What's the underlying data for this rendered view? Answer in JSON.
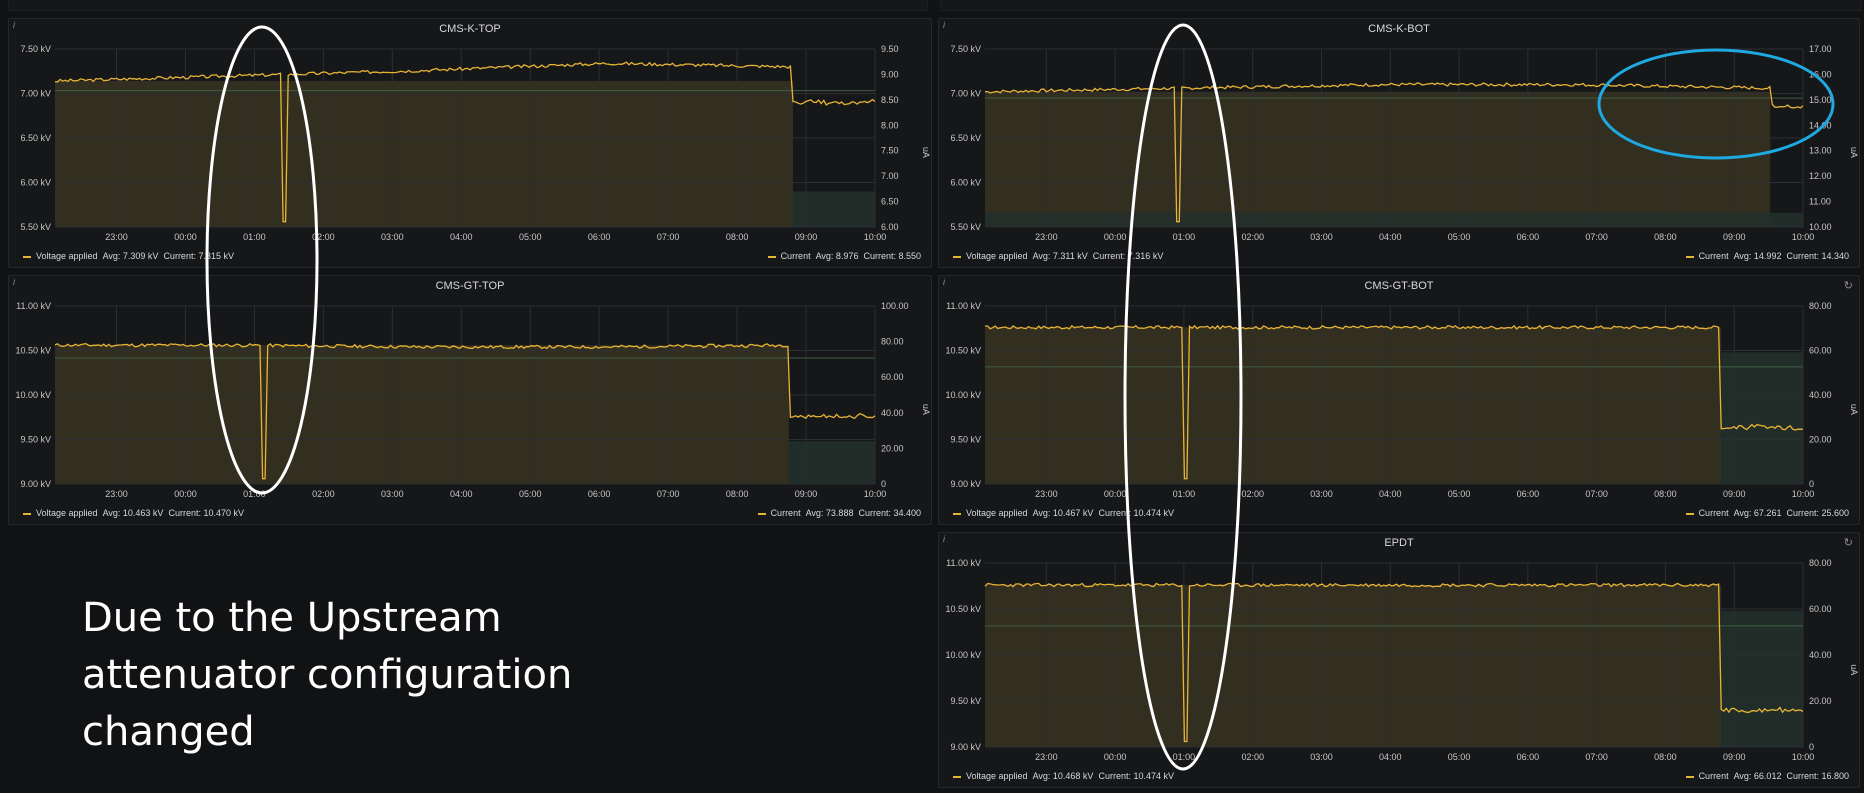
{
  "colors": {
    "background": "#111214",
    "panel": "#161719",
    "series": "#e8b434",
    "threshold": "#3a5a3e",
    "annotation_white": "#ffffff",
    "annotation_blue": "#1ea9e0"
  },
  "annotation_text": "Due to the Upstream attenuator configuration changed",
  "time_axis": [
    "23:00",
    "00:00",
    "01:00",
    "02:00",
    "03:00",
    "04:00",
    "05:00",
    "06:00",
    "07:00",
    "08:00",
    "09:00",
    "10:00"
  ],
  "panels": [
    {
      "id": "cms-k-top",
      "title": "CMS-K-TOP",
      "y_left": [
        "7.50 kV",
        "7.00 kV",
        "6.50 kV",
        "6.00 kV",
        "5.50 kV"
      ],
      "y_right": [
        "9.50",
        "9.00",
        "8.50",
        "8.00",
        "7.50",
        "7.00",
        "6.50",
        "6.00"
      ],
      "y_right_unit": "uA",
      "legend_left": {
        "name": "Voltage applied",
        "avg": "Avg: 7.309 kV",
        "current": "Current: 7.315 kV"
      },
      "legend_right": {
        "name": "Current",
        "avg": "Avg: 8.976",
        "current": "Current: 8.550"
      }
    },
    {
      "id": "cms-k-bot",
      "title": "CMS-K-BOT",
      "y_left": [
        "7.50 kV",
        "7.00 kV",
        "6.50 kV",
        "6.00 kV",
        "5.50 kV"
      ],
      "y_right": [
        "17.00",
        "16.00",
        "15.00",
        "14.00",
        "13.00",
        "12.00",
        "11.00",
        "10.00"
      ],
      "y_right_unit": "uA",
      "legend_left": {
        "name": "Voltage applied",
        "avg": "Avg: 7.311 kV",
        "current": "Current: 7.316 kV"
      },
      "legend_right": {
        "name": "Current",
        "avg": "Avg: 14.992",
        "current": "Current: 14.340"
      }
    },
    {
      "id": "cms-gt-top",
      "title": "CMS-GT-TOP",
      "y_left": [
        "11.00 kV",
        "10.50 kV",
        "10.00 kV",
        "9.50 kV",
        "9.00 kV"
      ],
      "y_right": [
        "100.00",
        "80.00",
        "60.00",
        "40.00",
        "20.00",
        "0"
      ],
      "y_right_unit": "uA",
      "legend_left": {
        "name": "Voltage applied",
        "avg": "Avg: 10.463 kV",
        "current": "Current: 10.470 kV"
      },
      "legend_right": {
        "name": "Current",
        "avg": "Avg: 73.888",
        "current": "Current: 34.400"
      }
    },
    {
      "id": "cms-gt-bot",
      "title": "CMS-GT-BOT",
      "y_left": [
        "11.00 kV",
        "10.50 kV",
        "10.00 kV",
        "9.50 kV",
        "9.00 kV"
      ],
      "y_right": [
        "80.00",
        "60.00",
        "40.00",
        "20.00",
        "0"
      ],
      "y_right_unit": "uA",
      "legend_left": {
        "name": "Voltage applied",
        "avg": "Avg: 10.467 kV",
        "current": "Current: 10.474 kV"
      },
      "legend_right": {
        "name": "Current",
        "avg": "Avg: 67.261",
        "current": "Current: 25.600"
      }
    },
    {
      "id": "epdt",
      "title": "EPDT",
      "y_left": [
        "11.00 kV",
        "10.50 kV",
        "10.00 kV",
        "9.50 kV",
        "9.00 kV"
      ],
      "y_right": [
        "80.00",
        "60.00",
        "40.00",
        "20.00",
        "0"
      ],
      "y_right_unit": "uA",
      "legend_left": {
        "name": "Voltage applied",
        "avg": "Avg: 10.468 kV",
        "current": "Current: 10.474 kV"
      },
      "legend_right": {
        "name": "Current",
        "avg": "Avg: 66.012",
        "current": "Current: 16.800"
      }
    }
  ]
}
